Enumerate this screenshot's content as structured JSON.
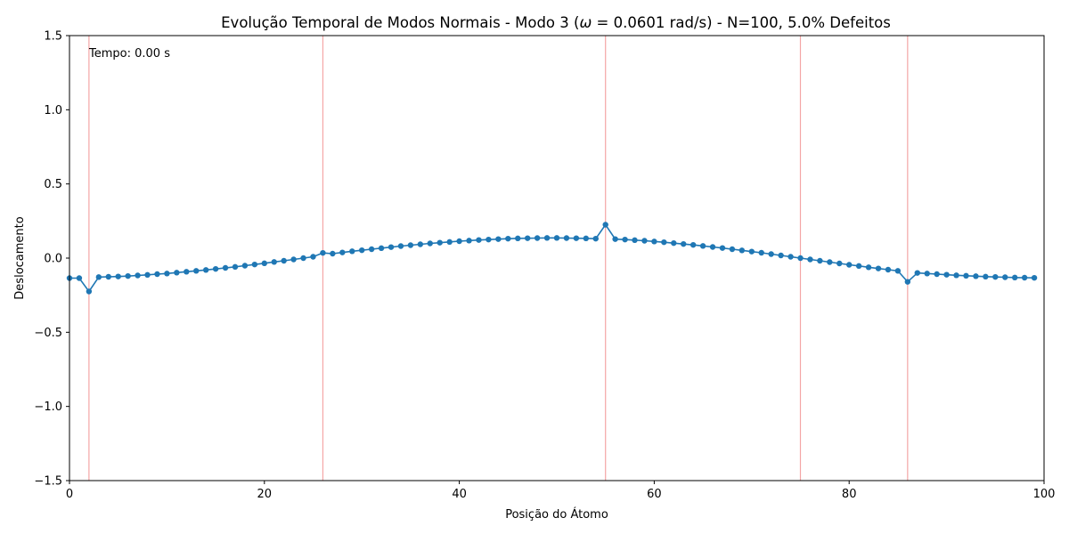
{
  "chart_data": {
    "type": "line",
    "title": "Evolução Temporal de Modos Normais - Modo 3 (ω = 0.0601 rad/s) - N=100, 5.0% Defeitos",
    "title_parts": {
      "prefix": "Evolução Temporal de Modos Normais - Modo 3 (",
      "omega_symbol": "ω",
      "suffix": " = 0.0601 rad/s) - N=100, 5.0% Defeitos"
    },
    "xlabel": "Posição do Átomo",
    "ylabel": "Deslocamento",
    "xlim": [
      0,
      100
    ],
    "ylim": [
      -1.5,
      1.5
    ],
    "xticks": [
      0,
      20,
      40,
      60,
      80,
      100
    ],
    "xtick_labels": [
      "0",
      "20",
      "40",
      "60",
      "80",
      "100"
    ],
    "yticks": [
      -1.5,
      -1.0,
      -0.5,
      0.0,
      0.5,
      1.0,
      1.5
    ],
    "ytick_labels": [
      "−1.5",
      "−1.0",
      "−0.5",
      "0.0",
      "0.5",
      "1.0",
      "1.5"
    ],
    "grid": false,
    "annotation": "Tempo: 0.00 s",
    "defect_positions": [
      2,
      26,
      55,
      75,
      86
    ],
    "colors": {
      "line": "#1f77b4",
      "defect_line": "#f4a6a6"
    },
    "series": [
      {
        "x": [
          0,
          1,
          2,
          3,
          4,
          5,
          6,
          7,
          8,
          9,
          10,
          11,
          12,
          13,
          14,
          15,
          16,
          17,
          18,
          19,
          20,
          21,
          22,
          23,
          24,
          25,
          26,
          27,
          28,
          29,
          30,
          31,
          32,
          33,
          34,
          35,
          36,
          37,
          38,
          39,
          40,
          41,
          42,
          43,
          44,
          45,
          46,
          47,
          48,
          49,
          50,
          51,
          52,
          53,
          54,
          55,
          56,
          57,
          58,
          59,
          60,
          61,
          62,
          63,
          64,
          65,
          66,
          67,
          68,
          69,
          70,
          71,
          72,
          73,
          74,
          75,
          76,
          77,
          78,
          79,
          80,
          81,
          82,
          83,
          84,
          85,
          86,
          87,
          88,
          89,
          90,
          91,
          92,
          93,
          94,
          95,
          96,
          97,
          98,
          99
        ],
        "values": [
          -0.135,
          -0.135,
          -0.225,
          -0.128,
          -0.126,
          -0.124,
          -0.121,
          -0.117,
          -0.113,
          -0.108,
          -0.104,
          -0.098,
          -0.092,
          -0.086,
          -0.08,
          -0.073,
          -0.066,
          -0.059,
          -0.051,
          -0.043,
          -0.035,
          -0.026,
          -0.018,
          -0.009,
          0.0,
          0.009,
          0.035,
          0.03,
          0.038,
          0.046,
          0.053,
          0.06,
          0.067,
          0.074,
          0.081,
          0.087,
          0.093,
          0.099,
          0.104,
          0.109,
          0.114,
          0.118,
          0.122,
          0.125,
          0.128,
          0.131,
          0.133,
          0.134,
          0.135,
          0.136,
          0.136,
          0.135,
          0.134,
          0.133,
          0.131,
          0.225,
          0.128,
          0.125,
          0.121,
          0.117,
          0.112,
          0.107,
          0.101,
          0.095,
          0.089,
          0.082,
          0.075,
          0.068,
          0.06,
          0.052,
          0.044,
          0.036,
          0.027,
          0.018,
          0.009,
          0.0,
          -0.009,
          -0.018,
          -0.027,
          -0.036,
          -0.045,
          -0.053,
          -0.062,
          -0.07,
          -0.078,
          -0.086,
          -0.16,
          -0.1,
          -0.104,
          -0.108,
          -0.112,
          -0.116,
          -0.119,
          -0.122,
          -0.125,
          -0.127,
          -0.129,
          -0.131,
          -0.132,
          -0.133
        ]
      }
    ]
  }
}
